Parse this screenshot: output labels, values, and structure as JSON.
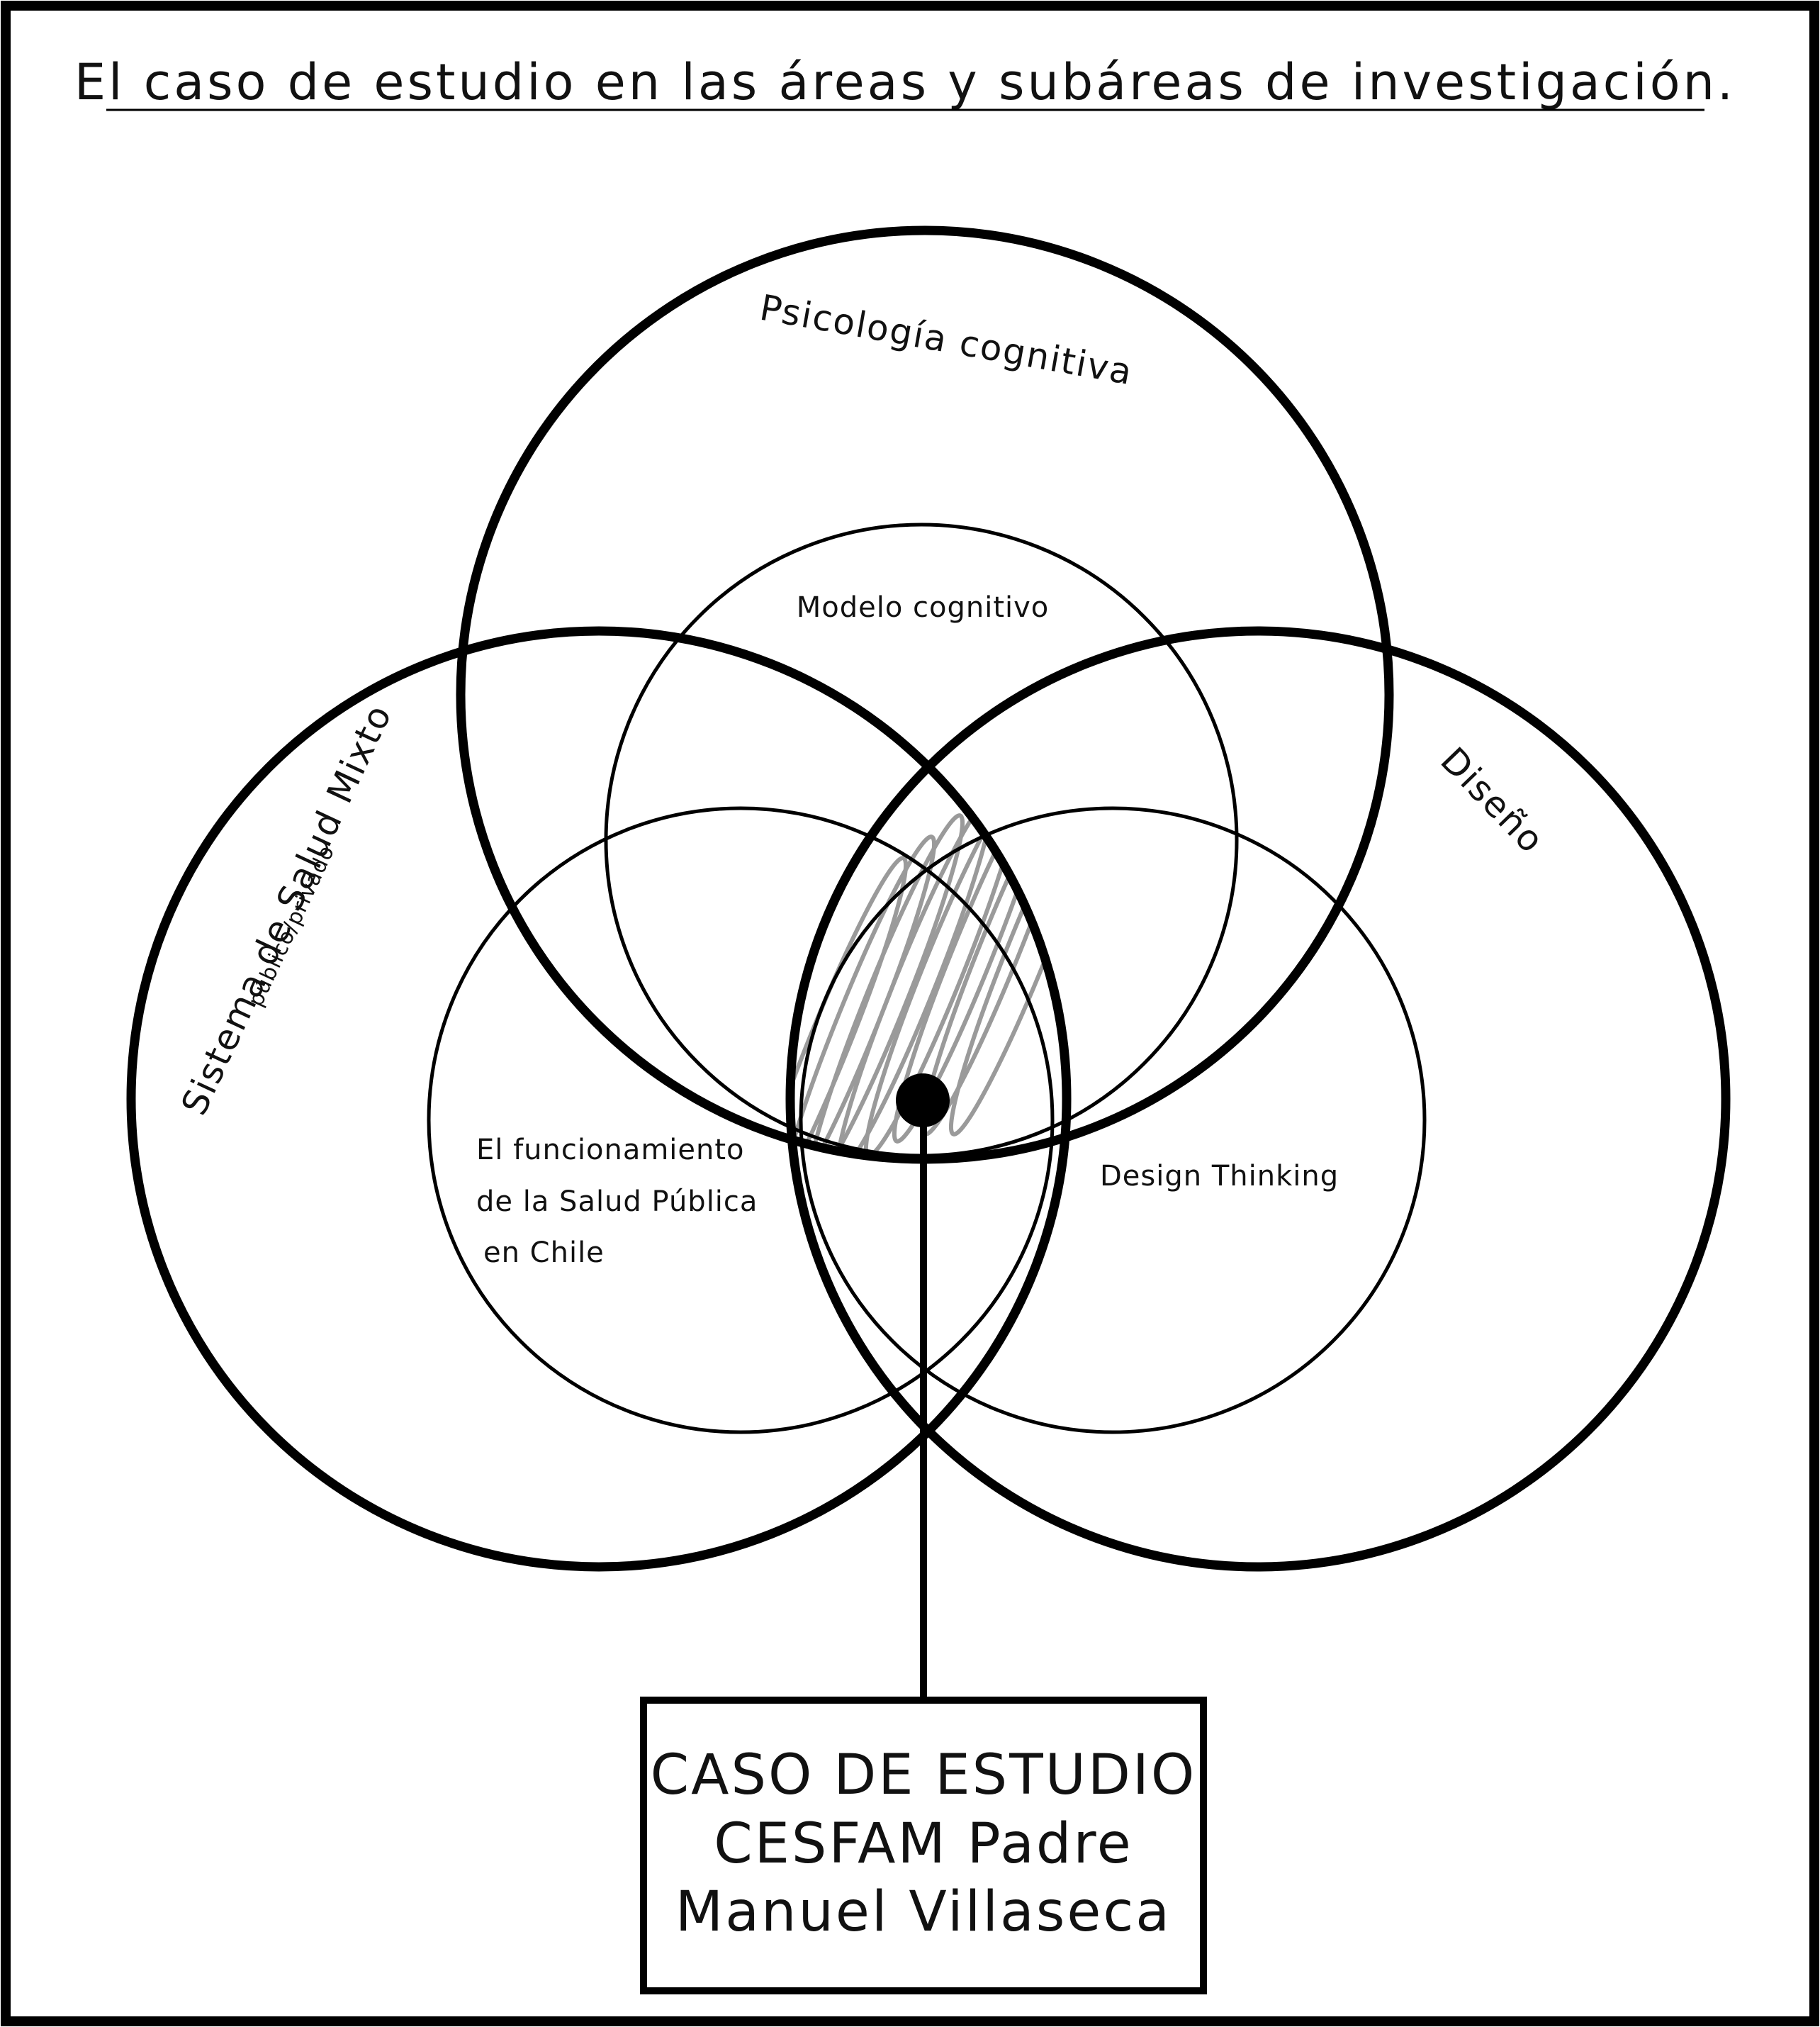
{
  "title": "El  caso de estudio en las áreas y subáreas de investigación.",
  "areas": {
    "psicologia": "Psicología cognitiva",
    "salud": "Sistema de Salud Mixto",
    "salud_sub": "público/privado",
    "diseno": "Diseño"
  },
  "subareas": {
    "modelo": "Modelo cognitivo",
    "funcionamiento": [
      "El funcionamiento",
      "de la Salud Pública",
      "en Chile"
    ],
    "design_thinking": "Design Thinking"
  },
  "case_box": [
    "CASO DE ESTUDIO",
    "CESFAM Padre",
    "Manuel Villaseca"
  ],
  "colors": {
    "stroke": "#000000",
    "hatch": "#9a9a9a",
    "background": "#ffffff"
  }
}
